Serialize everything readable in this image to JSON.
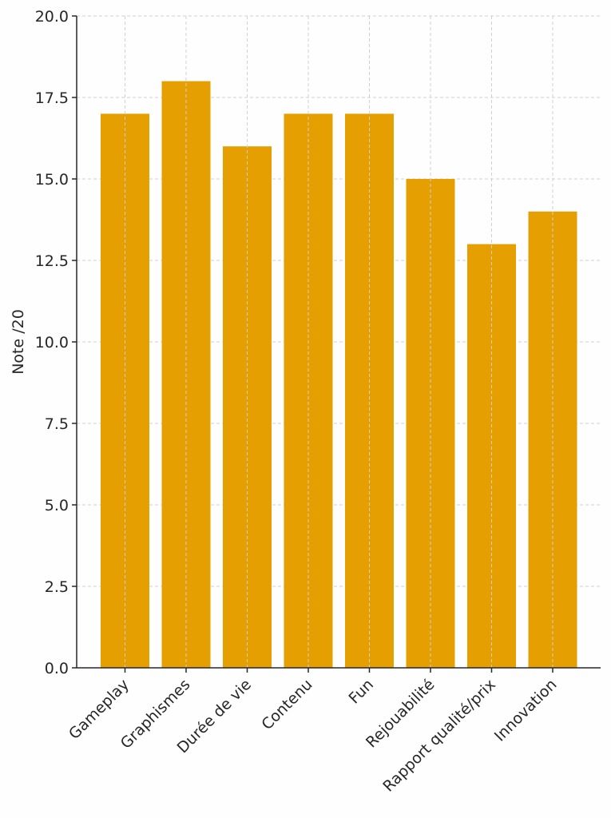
{
  "chart_data": {
    "type": "bar",
    "title": "",
    "xlabel": "",
    "ylabel": "Note /20",
    "categories": [
      "Gameplay",
      "Graphismes",
      "Durée de vie",
      "Contenu",
      "Fun",
      "Rejouabilité",
      "Rapport qualité/prix",
      "Innovation"
    ],
    "values": [
      17,
      18,
      16,
      17,
      17,
      15,
      13,
      14
    ],
    "ylim": [
      0,
      20
    ],
    "yticks": [
      "0.0",
      "2.5",
      "5.0",
      "7.5",
      "10.0",
      "12.5",
      "15.0",
      "17.5",
      "20.0"
    ],
    "grid": true,
    "bar_color": "#E69F00"
  }
}
